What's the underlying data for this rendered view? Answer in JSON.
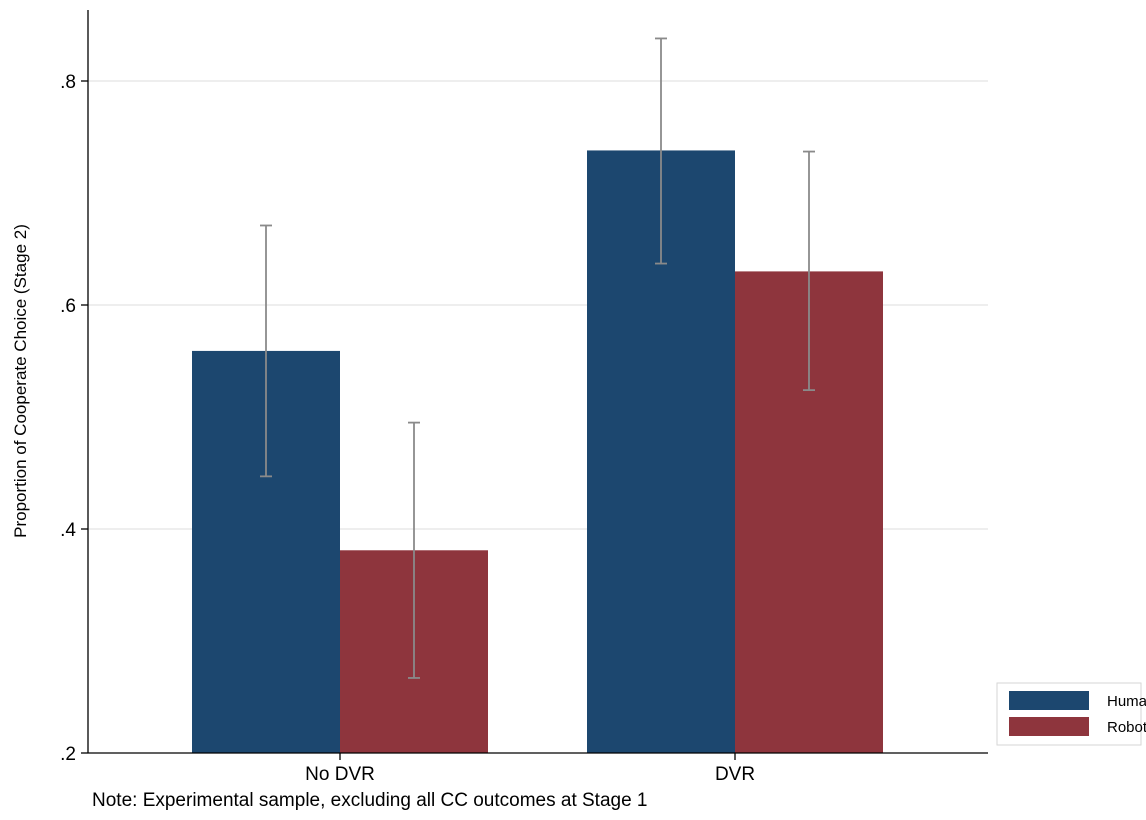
{
  "chart_data": {
    "type": "bar",
    "title": "",
    "xlabel": "",
    "ylabel": "Proportion of Cooperate Choice (Stage 2)",
    "categories": [
      "No DVR",
      "DVR"
    ],
    "series": [
      {
        "name": "Human",
        "color": "#1c476f",
        "values": [
          0.559,
          0.738
        ],
        "ci_low": [
          0.447,
          0.637
        ],
        "ci_high": [
          0.671,
          0.838
        ]
      },
      {
        "name": "Robot",
        "color": "#8e353d",
        "values": [
          0.381,
          0.63
        ],
        "ci_low": [
          0.267,
          0.524
        ],
        "ci_high": [
          0.495,
          0.737
        ]
      }
    ],
    "ylim": [
      0.2,
      0.86
    ],
    "yticks": [
      0.2,
      0.4,
      0.6,
      0.8
    ],
    "ytick_labels": [
      ".2",
      ".4",
      ".6",
      ".8"
    ],
    "grid": true,
    "legend_position": "right-bottom",
    "errorbar_color": "#8a8a8a",
    "note": "Note: Experimental sample, excluding all CC outcomes at Stage 1"
  }
}
